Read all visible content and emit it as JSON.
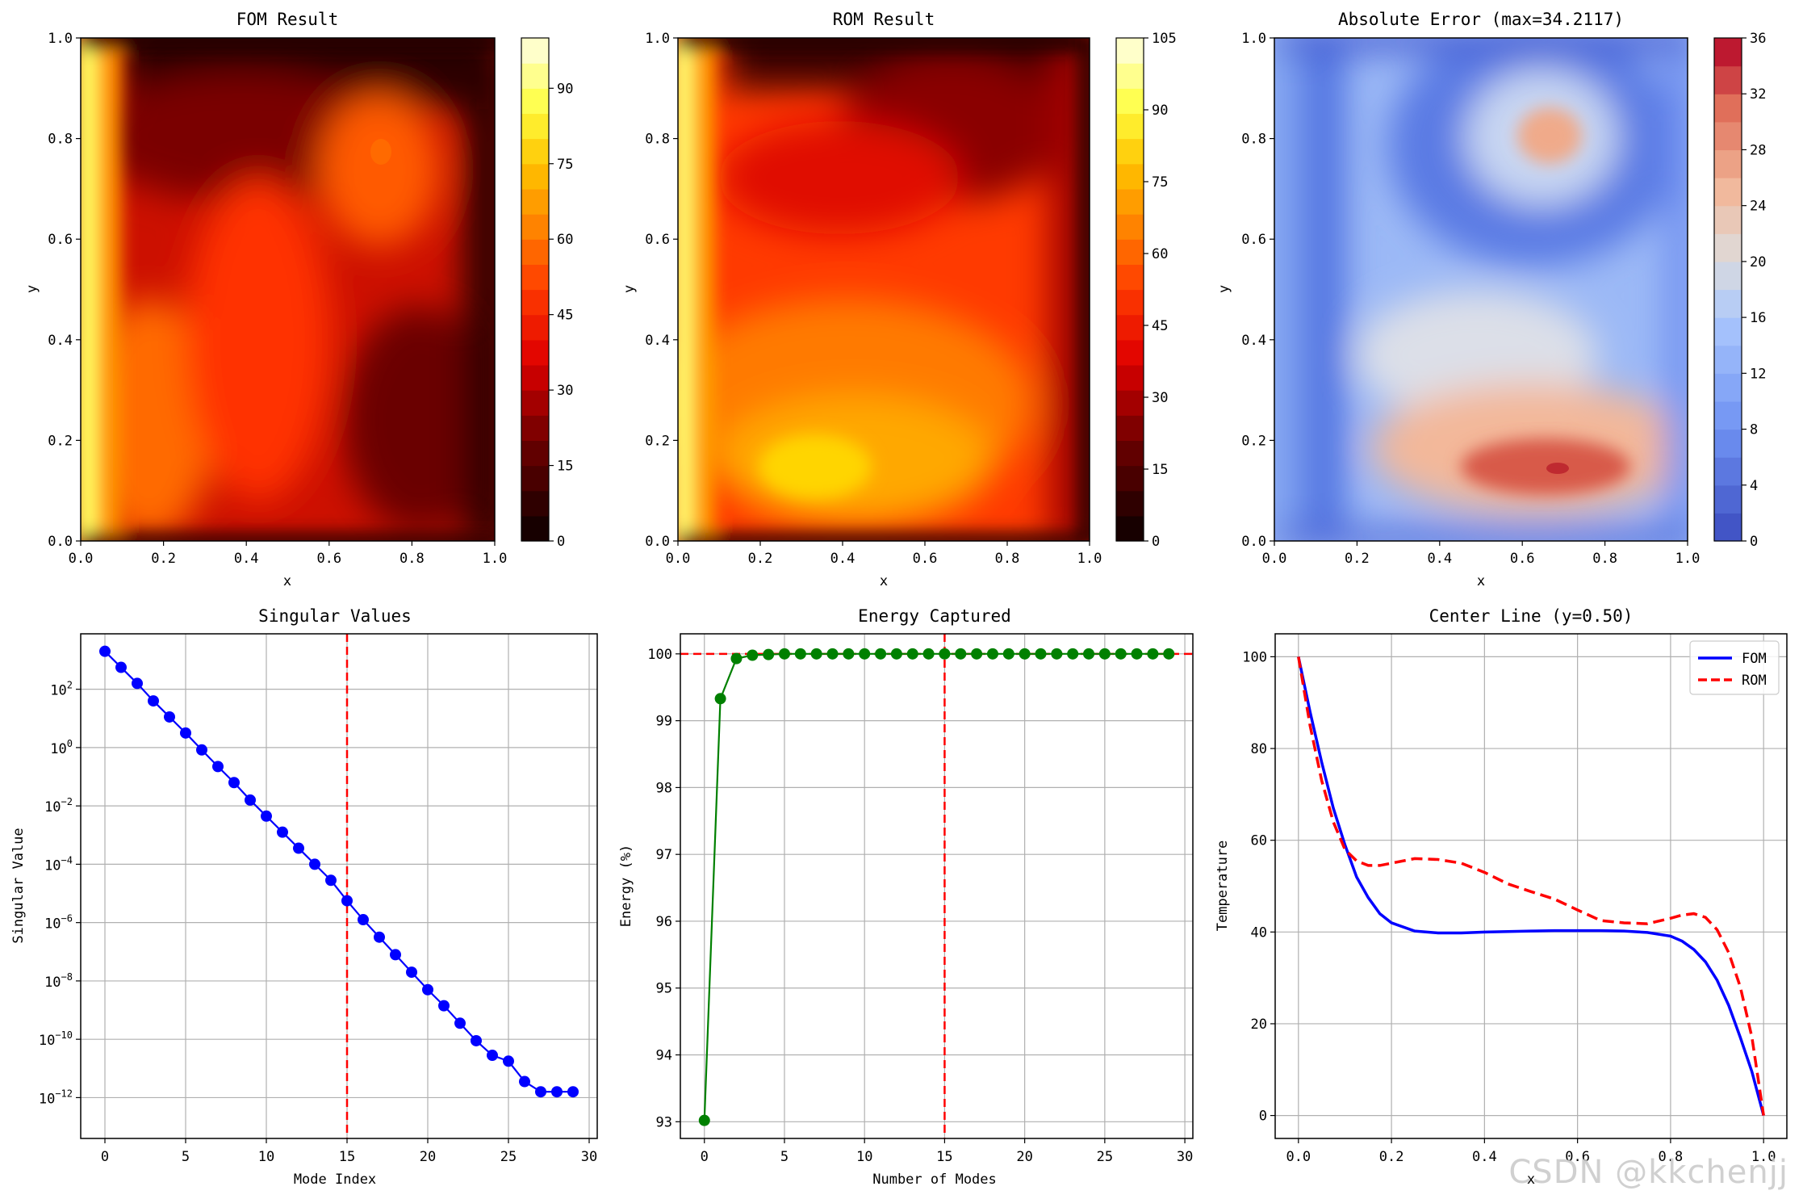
{
  "chart_data": [
    {
      "type": "heatmap",
      "title": "FOM Result",
      "xlabel": "x",
      "ylabel": "y",
      "colormap": "hot",
      "xlim": [
        0,
        1
      ],
      "ylim": [
        0,
        1
      ],
      "xticks": [
        "0.0",
        "0.2",
        "0.4",
        "0.6",
        "0.8",
        "1.0"
      ],
      "yticks": [
        "0.0",
        "0.2",
        "0.4",
        "0.6",
        "0.8",
        "1.0"
      ],
      "colorbar_range": [
        0,
        100
      ],
      "colorbar_ticks": [
        "0",
        "15",
        "30",
        "45",
        "60",
        "75",
        "90"
      ]
    },
    {
      "type": "heatmap",
      "title": "ROM Result",
      "xlabel": "x",
      "ylabel": "y",
      "colormap": "hot",
      "xlim": [
        0,
        1
      ],
      "ylim": [
        0,
        1
      ],
      "xticks": [
        "0.0",
        "0.2",
        "0.4",
        "0.6",
        "0.8",
        "1.0"
      ],
      "yticks": [
        "0.0",
        "0.2",
        "0.4",
        "0.6",
        "0.8",
        "1.0"
      ],
      "colorbar_range": [
        0,
        105
      ],
      "colorbar_ticks": [
        "0",
        "15",
        "30",
        "45",
        "60",
        "75",
        "90",
        "105"
      ]
    },
    {
      "type": "heatmap",
      "title": "Absolute Error (max=34.2117)",
      "xlabel": "x",
      "ylabel": "y",
      "colormap": "coolwarm",
      "xlim": [
        0,
        1
      ],
      "ylim": [
        0,
        1
      ],
      "xticks": [
        "0.0",
        "0.2",
        "0.4",
        "0.6",
        "0.8",
        "1.0"
      ],
      "yticks": [
        "0.0",
        "0.2",
        "0.4",
        "0.6",
        "0.8",
        "1.0"
      ],
      "colorbar_range": [
        0,
        36
      ],
      "colorbar_ticks": [
        "0",
        "4",
        "8",
        "12",
        "16",
        "20",
        "24",
        "28",
        "32",
        "36"
      ]
    },
    {
      "type": "line",
      "title": "Singular Values",
      "xlabel": "Mode Index",
      "ylabel": "Singular Value",
      "yscale": "log",
      "xlim": [
        -1.5,
        30.5
      ],
      "ylim_log10": [
        -13.4,
        3.9
      ],
      "grid": true,
      "color": "#0000ff",
      "marker": "circle",
      "x": [
        0,
        1,
        2,
        3,
        4,
        5,
        6,
        7,
        8,
        9,
        10,
        11,
        12,
        13,
        14,
        15,
        16,
        17,
        18,
        19,
        20,
        21,
        22,
        23,
        24,
        25,
        26,
        27,
        28,
        29
      ],
      "log10_values": [
        3.3,
        2.75,
        2.2,
        1.6,
        1.05,
        0.5,
        -0.08,
        -0.65,
        -1.2,
        -1.8,
        -2.35,
        -2.9,
        -3.45,
        -4.0,
        -4.55,
        -5.25,
        -5.9,
        -6.5,
        -7.1,
        -7.7,
        -8.3,
        -8.85,
        -9.45,
        -10.05,
        -10.55,
        -10.75,
        -11.45,
        -11.8,
        -11.8,
        -11.8
      ],
      "xticks": [
        "0",
        "5",
        "10",
        "15",
        "20",
        "25",
        "30"
      ],
      "yticks": [
        {
          "log10": 2,
          "base": "10",
          "exp": "2"
        },
        {
          "log10": 0,
          "base": "10",
          "exp": "0"
        },
        {
          "log10": -2,
          "base": "10",
          "exp": "−2"
        },
        {
          "log10": -4,
          "base": "10",
          "exp": "−4"
        },
        {
          "log10": -6,
          "base": "10",
          "exp": "−6"
        },
        {
          "log10": -8,
          "base": "10",
          "exp": "−8"
        },
        {
          "log10": -10,
          "base": "10",
          "exp": "−10"
        },
        {
          "log10": -12,
          "base": "10",
          "exp": "−12"
        }
      ],
      "vline": {
        "x": 15,
        "color": "#ff0000",
        "style": "dashed"
      }
    },
    {
      "type": "line",
      "title": "Energy Captured",
      "xlabel": "Number of Modes",
      "ylabel": "Energy (%)",
      "xlim": [
        -1.5,
        30.5
      ],
      "ylim": [
        92.75,
        100.3
      ],
      "grid": true,
      "color": "#008000",
      "marker": "circle",
      "x": [
        0,
        1,
        2,
        3,
        4,
        5,
        6,
        7,
        8,
        9,
        10,
        11,
        12,
        13,
        14,
        15,
        16,
        17,
        18,
        19,
        20,
        21,
        22,
        23,
        24,
        25,
        26,
        27,
        28,
        29
      ],
      "values": [
        93.02,
        99.33,
        99.93,
        99.98,
        99.99,
        100,
        100,
        100,
        100,
        100,
        100,
        100,
        100,
        100,
        100,
        100,
        100,
        100,
        100,
        100,
        100,
        100,
        100,
        100,
        100,
        100,
        100,
        100,
        100,
        100
      ],
      "xticks": [
        "0",
        "5",
        "10",
        "15",
        "20",
        "25",
        "30"
      ],
      "yticks": [
        "93",
        "94",
        "95",
        "96",
        "97",
        "98",
        "99",
        "100"
      ],
      "vline": {
        "x": 15,
        "color": "#ff0000",
        "style": "dashed"
      },
      "hline": {
        "y": 100,
        "color": "#ff0000",
        "style": "dashed"
      }
    },
    {
      "type": "line",
      "title": "Center Line (y=0.50)",
      "xlabel": "x",
      "ylabel": "Temperature",
      "xlim": [
        -0.05,
        1.05
      ],
      "ylim": [
        -5,
        105
      ],
      "grid": true,
      "xticks": [
        "0.0",
        "0.2",
        "0.4",
        "0.6",
        "0.8",
        "1.0"
      ],
      "yticks": [
        "0",
        "20",
        "40",
        "60",
        "80",
        "100"
      ],
      "legend": "top-right",
      "series": [
        {
          "name": "FOM",
          "color": "#0000ff",
          "style": "solid",
          "x": [
            0,
            0.025,
            0.05,
            0.075,
            0.1,
            0.125,
            0.15,
            0.175,
            0.2,
            0.25,
            0.3,
            0.35,
            0.4,
            0.45,
            0.5,
            0.55,
            0.6,
            0.65,
            0.7,
            0.75,
            0.8,
            0.825,
            0.85,
            0.875,
            0.9,
            0.925,
            0.95,
            0.975,
            1.0
          ],
          "values": [
            100,
            88,
            77,
            67,
            59,
            52,
            47.5,
            44,
            42,
            40.2,
            39.8,
            39.8,
            40,
            40.1,
            40.2,
            40.3,
            40.3,
            40.3,
            40.2,
            39.9,
            39.1,
            38,
            36.2,
            33.5,
            29.5,
            24,
            17,
            9.5,
            0
          ]
        },
        {
          "name": "ROM",
          "color": "#ff0000",
          "style": "dashed",
          "x": [
            0,
            0.025,
            0.05,
            0.075,
            0.1,
            0.125,
            0.15,
            0.175,
            0.2,
            0.25,
            0.3,
            0.35,
            0.4,
            0.45,
            0.5,
            0.55,
            0.6,
            0.65,
            0.7,
            0.75,
            0.8,
            0.825,
            0.85,
            0.875,
            0.9,
            0.925,
            0.95,
            0.975,
            1.0
          ],
          "values": [
            100,
            85,
            73,
            64,
            58,
            55.5,
            54.5,
            54.5,
            55,
            56,
            55.8,
            55,
            53,
            50.5,
            48.8,
            47.2,
            44.8,
            42.5,
            42,
            41.8,
            43,
            43.7,
            44,
            43.2,
            40.5,
            35.5,
            28,
            17,
            0
          ]
        }
      ]
    }
  ],
  "watermark": "CSDN @kkchenjj"
}
